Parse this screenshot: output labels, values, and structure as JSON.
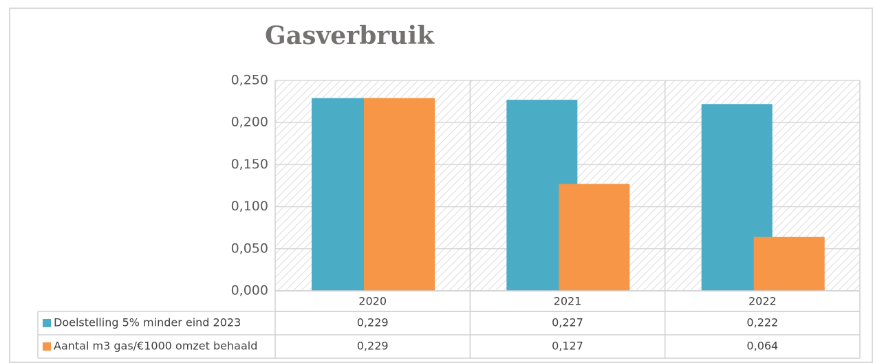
{
  "chart_data": {
    "type": "bar",
    "title": "Gasverbruik",
    "categories": [
      "2020",
      "2021",
      "2022"
    ],
    "series": [
      {
        "name": "Doelstelling 5% minder eind 2023",
        "color": "#4bacc6",
        "values": [
          0.229,
          0.227,
          0.222
        ],
        "value_labels": [
          "0,229",
          "0,227",
          "0,222"
        ]
      },
      {
        "name": "Aantal m3 gas/€1000 omzet behaald",
        "color": "#f79646",
        "values": [
          0.229,
          0.127,
          0.064
        ],
        "value_labels": [
          "0,229",
          "0,127",
          "0,064"
        ]
      }
    ],
    "ylim": [
      0,
      0.25
    ],
    "yticks": [
      {
        "value": 0,
        "label": "0,000"
      },
      {
        "value": 0.05,
        "label": "0,050"
      },
      {
        "value": 0.1,
        "label": "0,100"
      },
      {
        "value": 0.15,
        "label": "0,150"
      },
      {
        "value": 0.2,
        "label": "0,200"
      },
      {
        "value": 0.25,
        "label": "0,250"
      }
    ],
    "grid": true,
    "legend": "data-table"
  }
}
